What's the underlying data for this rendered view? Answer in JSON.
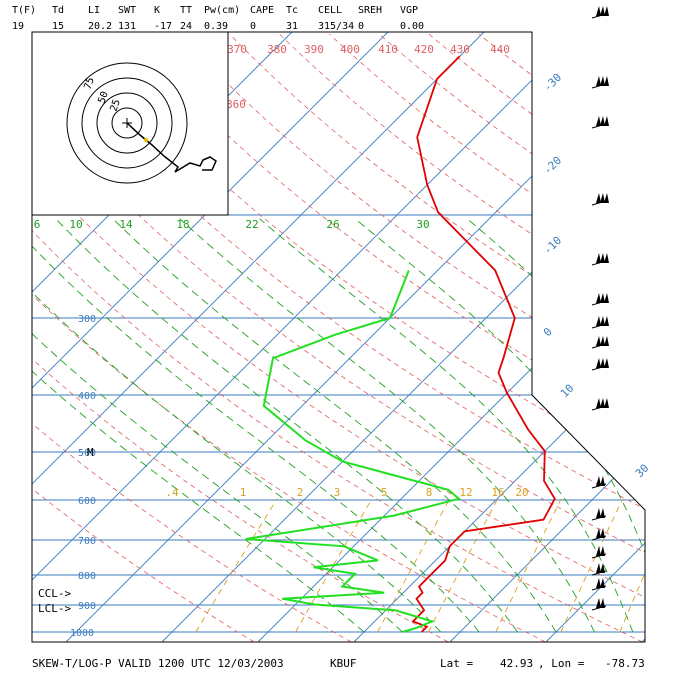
{
  "header": {
    "labels": [
      "T(F)",
      "Td",
      "LI",
      "SWT",
      "K",
      "TT",
      "Pw(cm)",
      "CAPE",
      "Tc",
      "CELL",
      "SREH",
      "VGP"
    ],
    "values": [
      "19",
      "15",
      "20.2",
      "131",
      "-17",
      "24",
      "0.39",
      "0",
      "31",
      "315/34",
      "0",
      "0.00"
    ]
  },
  "footer": {
    "title": "SKEW-T/LOG-P VALID 1200 UTC 12/03/2003",
    "station": "KBUF",
    "lat_label": "Lat =",
    "lat": "42.93",
    "lon_label": ", Lon =",
    "lon": "-78.73"
  },
  "markers": {
    "ccl": "CCL->",
    "lcl": "LCL->"
  },
  "hodograph": {
    "rings": [
      "75",
      "50",
      "25"
    ]
  },
  "colors": {
    "frame": "#000000",
    "isobar": "#3a7bbf",
    "isotherm": "#3a7bbf",
    "dry_adiabat": "#e06060",
    "moist_adiabat": "#20a020",
    "mixing_ratio": "#d8a020",
    "temperature": "#e00000",
    "dewpoint": "#20e020",
    "text": "#000000"
  },
  "chart_data": {
    "type": "line",
    "title": "SKEW-T/LOG-P VALID 1200 UTC 12/03/2003",
    "y_scale": "log-pressure",
    "pressure_ticks": [
      {
        "p": 300,
        "label": "300"
      },
      {
        "p": 400,
        "label": "400"
      },
      {
        "p": 500,
        "label": "500"
      },
      {
        "p": 600,
        "label": "600"
      },
      {
        "p": 700,
        "label": "700"
      },
      {
        "p": 800,
        "label": "800"
      },
      {
        "p": 900,
        "label": "900"
      },
      {
        "p": 1000,
        "label": "1000"
      }
    ],
    "isotherm_labels": [
      "-30",
      "-20",
      "-10",
      "0",
      "10",
      "30"
    ],
    "dry_adiabat_labels": [
      "360",
      "370",
      "380",
      "390",
      "400",
      "410",
      "420",
      "430",
      "440"
    ],
    "moist_adiabat_labels": [
      "6",
      "10",
      "14",
      "18",
      "22",
      "26",
      "30"
    ],
    "mixing_ratio_labels": [
      ".4",
      "1",
      "2",
      "3",
      "5",
      "8",
      "12",
      "16",
      "20"
    ],
    "series": [
      {
        "key": "temperature",
        "points": [
          [
            1000,
            -4
          ],
          [
            980,
            -4
          ],
          [
            960,
            -6
          ],
          [
            920,
            -6
          ],
          [
            880,
            -8
          ],
          [
            860,
            -8
          ],
          [
            840,
            -9
          ],
          [
            800,
            -9
          ],
          [
            760,
            -9
          ],
          [
            720,
            -10
          ],
          [
            700,
            -10
          ],
          [
            680,
            -10
          ],
          [
            650,
            -3
          ],
          [
            600,
            -4
          ],
          [
            560,
            -7
          ],
          [
            500,
            -10
          ],
          [
            460,
            -14
          ],
          [
            400,
            -20
          ],
          [
            370,
            -23
          ],
          [
            350,
            -24
          ],
          [
            300,
            -27
          ],
          [
            250,
            -34
          ],
          [
            200,
            -46
          ],
          [
            180,
            -50
          ],
          [
            150,
            -56
          ],
          [
            120,
            -60
          ],
          [
            110,
            -60
          ]
        ]
      },
      {
        "key": "dewpoint",
        "points": [
          [
            1000,
            -6
          ],
          [
            985,
            -5
          ],
          [
            960,
            -4
          ],
          [
            920,
            -9
          ],
          [
            900,
            -18
          ],
          [
            880,
            -22
          ],
          [
            860,
            -12
          ],
          [
            840,
            -17
          ],
          [
            800,
            -17
          ],
          [
            780,
            -22
          ],
          [
            760,
            -16
          ],
          [
            720,
            -21
          ],
          [
            700,
            -32
          ],
          [
            640,
            -19
          ],
          [
            600,
            -14
          ],
          [
            580,
            -16
          ],
          [
            520,
            -30
          ],
          [
            480,
            -36
          ],
          [
            420,
            -44
          ],
          [
            350,
            -48
          ],
          [
            320,
            -44
          ],
          [
            300,
            -40
          ],
          [
            250,
            -43
          ]
        ]
      }
    ]
  }
}
